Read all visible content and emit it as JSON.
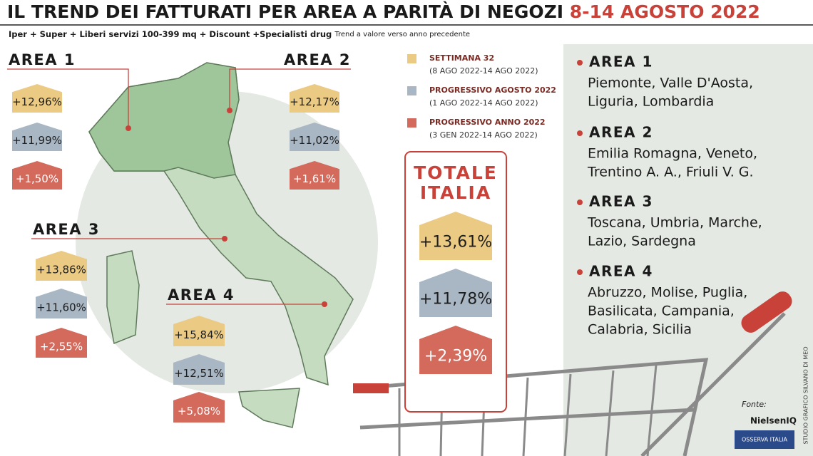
{
  "header": {
    "title": "IL TREND DEI FATTURATI PER AREA A PARITÀ DI NEGOZI",
    "title_date": "8-14 AGOSTO 2022",
    "subtitle": "Iper + Super + Liberi servizi 100-399 mq + Discount +Specialisti drug",
    "note": "Trend a valore verso anno precedente"
  },
  "legend": [
    {
      "label": "SETTIMANA 32",
      "range": "(8 AGO 2022-14 AGO 2022)"
    },
    {
      "label": "PROGRESSIVO AGOSTO 2022",
      "range": "(1 AGO 2022-14 AGO 2022)"
    },
    {
      "label": "PROGRESSIVO ANNO 2022",
      "range": "(3 GEN 2022-14 AGO 2022)"
    }
  ],
  "areas": [
    {
      "name": "AREA 1",
      "values": [
        "+12,96%",
        "+11,99%",
        "+1,50%"
      ]
    },
    {
      "name": "AREA 2",
      "values": [
        "+12,17%",
        "+11,02%",
        "+1,61%"
      ]
    },
    {
      "name": "AREA 3",
      "values": [
        "+13,86%",
        "+11,60%",
        "+2,55%"
      ]
    },
    {
      "name": "AREA 4",
      "values": [
        "+15,84%",
        "+12,51%",
        "+5,08%"
      ]
    }
  ],
  "totale": {
    "title_line1": "TOTALE",
    "title_line2": "ITALIA",
    "values": [
      "+13,61%",
      "+11,78%",
      "+2,39%"
    ]
  },
  "regions": [
    {
      "name": "AREA 1",
      "lines": [
        "Piemonte, Valle D'Aosta,",
        "Liguria, Lombardia"
      ]
    },
    {
      "name": "AREA 2",
      "lines": [
        "Emilia Romagna, Veneto,",
        "Trentino A. A., Friuli V. G."
      ]
    },
    {
      "name": "AREA 3",
      "lines": [
        "Toscana, Umbria, Marche,",
        "Lazio, Sardegna"
      ]
    },
    {
      "name": "AREA 4",
      "lines": [
        "Abruzzo, Molise, Puglia,",
        "Basilicata, Campania,",
        "Calabria, Sicilia"
      ]
    }
  ],
  "credits": {
    "source_label": "Fonte:",
    "sources": [
      "NielsenIQ",
      "OSSERVA ITALIA"
    ],
    "studio": "STUDIO GRAFICO SILVANO DI MEO"
  }
}
